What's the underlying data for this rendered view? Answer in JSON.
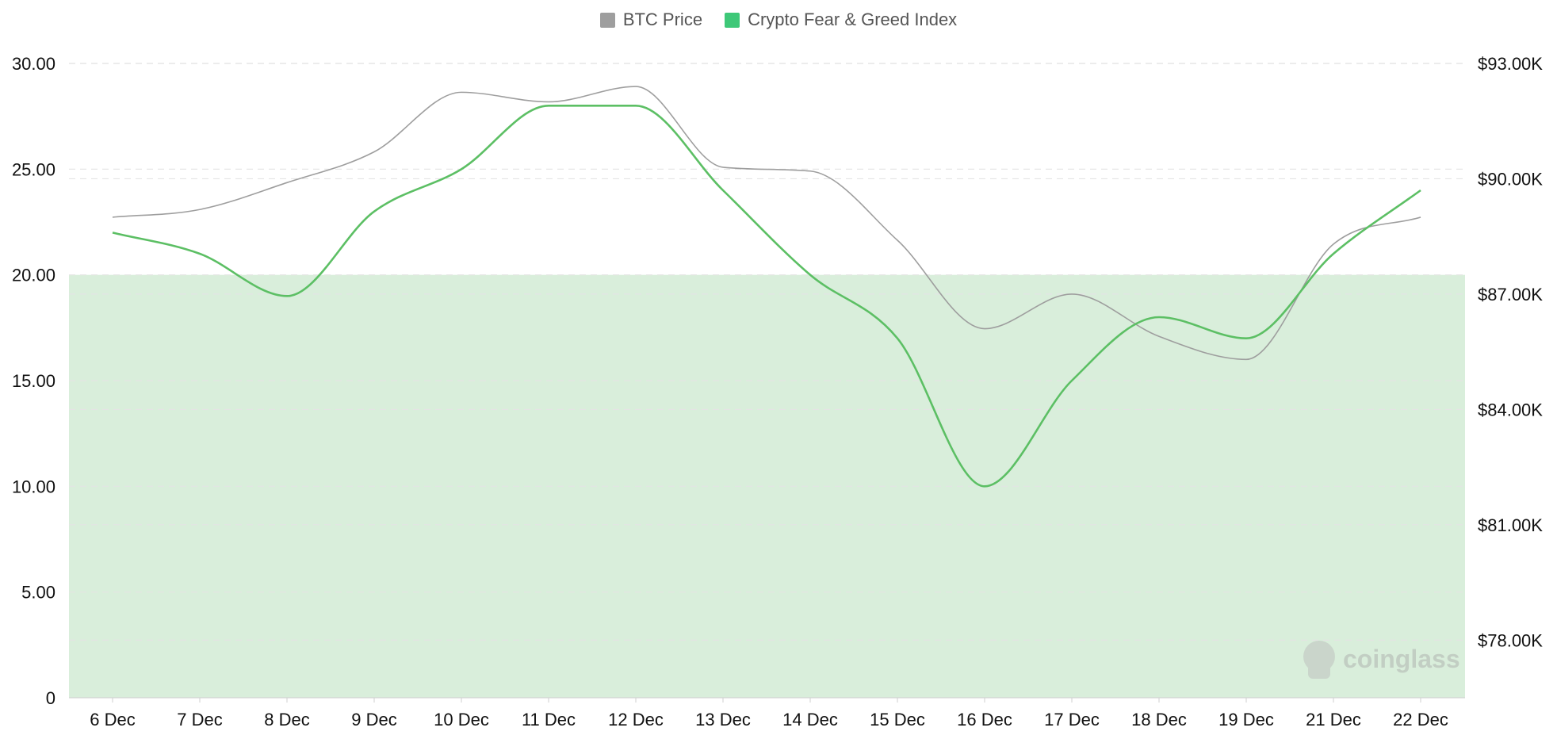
{
  "chart_data": {
    "type": "line",
    "legend_position": "top-center",
    "grid": true,
    "categories": [
      "6 Dec",
      "7 Dec",
      "8 Dec",
      "9 Dec",
      "10 Dec",
      "11 Dec",
      "12 Dec",
      "13 Dec",
      "14 Dec",
      "15 Dec",
      "16 Dec",
      "17 Dec",
      "18 Dec",
      "19 Dec",
      "21 Dec",
      "22 Dec"
    ],
    "y_left": {
      "ylim": [
        0,
        30
      ],
      "ticks": [
        0,
        5,
        10,
        15,
        20,
        25,
        30
      ],
      "tick_labels": [
        "0",
        "5.00",
        "10.00",
        "15.00",
        "20.00",
        "25.00",
        "30.00"
      ]
    },
    "y_right": {
      "ylim": [
        76500,
        93000
      ],
      "ticks": [
        78000,
        81000,
        84000,
        87000,
        90000,
        93000
      ],
      "tick_labels": [
        "$78.00K",
        "$81.00K",
        "$84.00K",
        "$87.00K",
        "$90.00K",
        "$93.00K"
      ]
    },
    "shaded_band": {
      "y_from": 0,
      "y_to": 20,
      "color": "#d9eedb"
    },
    "series": [
      {
        "name": "BTC Price",
        "axis": "right",
        "color": "#9e9e9e",
        "legend_color": "#9e9e9e",
        "values": [
          89000,
          89200,
          89900,
          90700,
          92250,
          92000,
          92400,
          90300,
          90200,
          88400,
          86100,
          87000,
          85900,
          85300,
          88300,
          89000
        ]
      },
      {
        "name": "Crypto Fear & Greed Index",
        "axis": "left",
        "color": "#5cbf64",
        "legend_color": "#3ec878",
        "values": [
          22,
          21,
          19,
          23,
          25,
          28,
          28,
          24,
          20,
          17,
          10,
          15,
          18,
          17,
          21,
          24
        ]
      }
    ],
    "watermark": "coinglass"
  }
}
